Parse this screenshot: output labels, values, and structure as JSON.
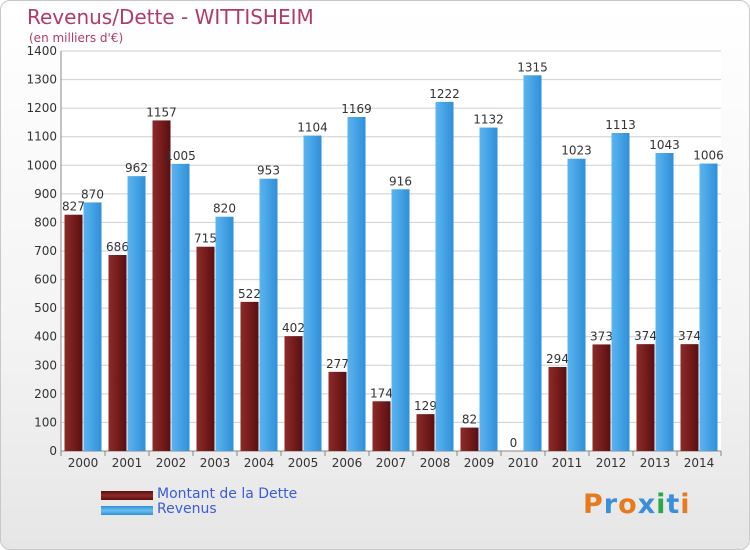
{
  "chart_data": {
    "type": "bar",
    "title": "Revenus/Dette - WITTISHEIM",
    "subtitle": "(en milliers d'€)",
    "categories": [
      "2000",
      "2001",
      "2002",
      "2003",
      "2004",
      "2005",
      "2006",
      "2007",
      "2008",
      "2009",
      "2010",
      "2011",
      "2012",
      "2013",
      "2014"
    ],
    "series": [
      {
        "name": "Montant de la Dette",
        "color": "#7a1e1e",
        "values": [
          827,
          686,
          1157,
          715,
          522,
          402,
          277,
          174,
          129,
          82,
          0,
          294,
          373,
          374,
          374
        ]
      },
      {
        "name": "Revenus",
        "color": "#3a9ee4",
        "values": [
          870,
          962,
          1005,
          820,
          953,
          1104,
          1169,
          916,
          1222,
          1132,
          1315,
          1023,
          1113,
          1043,
          1006
        ]
      }
    ],
    "ylim": [
      0,
      1400
    ],
    "yticks": [
      0,
      100,
      200,
      300,
      400,
      500,
      600,
      700,
      800,
      900,
      1000,
      1100,
      1200,
      1300,
      1400
    ],
    "grid": true,
    "legend_position": "bottom-left"
  },
  "logo": {
    "text": "Proxiti",
    "colors": [
      "#e57b1e",
      "#3a8fd8",
      "#e57b1e",
      "#3a8fd8",
      "#2aa84a",
      "#3a8fd8",
      "#e57b1e"
    ]
  }
}
